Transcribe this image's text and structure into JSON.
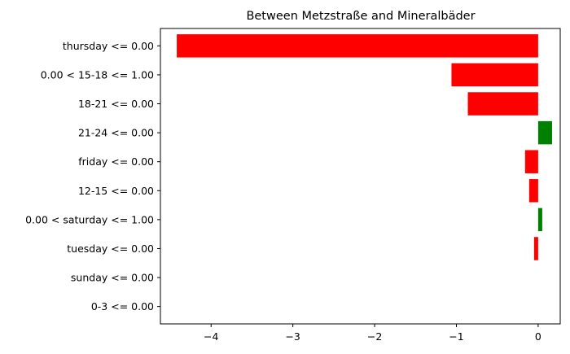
{
  "chart_data": {
    "type": "bar",
    "orientation": "horizontal",
    "title": "Between Metzstraße and Mineralbäder",
    "xlabel": "",
    "ylabel": "",
    "xlim": [
      -4.62,
      0.27
    ],
    "x_ticks": [
      -4,
      -3,
      -2,
      -1,
      0
    ],
    "x_tick_labels": [
      "−4",
      "−3",
      "−2",
      "−1",
      "0"
    ],
    "grid": false,
    "categories": [
      "thursday <= 0.00",
      "0.00 < 15-18 <= 1.00",
      "18-21 <= 0.00",
      "21-24 <= 0.00",
      "friday <= 0.00",
      "12-15 <= 0.00",
      "0.00 < saturday <= 1.00",
      "tuesday <= 0.00",
      "sunday <= 0.00",
      "0-3 <= 0.00"
    ],
    "values": [
      -4.42,
      -1.06,
      -0.86,
      0.17,
      -0.16,
      -0.11,
      0.05,
      -0.05,
      0.0,
      0.0
    ],
    "colors": {
      "negative": "#ff0000",
      "positive": "#008000"
    }
  }
}
